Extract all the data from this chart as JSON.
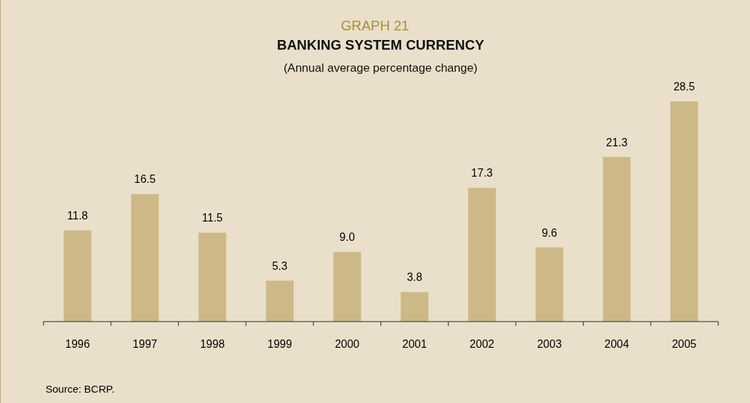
{
  "chart_data": {
    "type": "bar",
    "title": "BANKING SYSTEM CURRENCY",
    "subtitle": "(Annual average percentage change)",
    "annotations": [
      "GRAPH 21",
      "Source: BCRP."
    ],
    "categories": [
      "1996",
      "1997",
      "1998",
      "1999",
      "2000",
      "2001",
      "2002",
      "2003",
      "2004",
      "2005"
    ],
    "values": [
      11.8,
      16.5,
      11.5,
      5.3,
      9.0,
      3.8,
      17.3,
      9.6,
      21.3,
      28.5
    ],
    "value_labels": [
      "11.8",
      "16.5",
      "11.5",
      "5.3",
      "9.0",
      "3.8",
      "17.3",
      "9.6",
      "21.3",
      "28.5"
    ],
    "color": "#cdb887"
  }
}
